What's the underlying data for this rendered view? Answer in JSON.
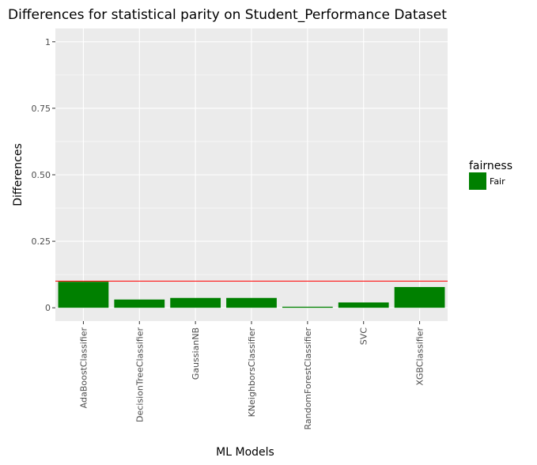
{
  "chart_data": {
    "type": "bar",
    "title": "Differences for statistical parity on Student_Performance Dataset",
    "xlabel": "ML Models",
    "ylabel": "Differences",
    "categories": [
      "AdaBoostClassifier",
      "DecisionTreeClassifier",
      "GaussianNB",
      "KNeighborsClassifier",
      "RandomForestClassifier",
      "SVC",
      "XGBClassifier"
    ],
    "values": [
      0.098,
      0.031,
      0.037,
      0.037,
      0.004,
      0.02,
      0.078
    ],
    "ylim": [
      -0.05,
      1.05
    ],
    "yticks": [
      0,
      0.25,
      0.5,
      0.75,
      1
    ],
    "ytick_labels": [
      "0",
      "0.25",
      "0.50",
      "0.75",
      "1"
    ],
    "threshold": 0.1,
    "threshold_color": "#ff0000",
    "bar_color": "#008000",
    "panel_color": "#ebebeb",
    "grid": true,
    "legend": {
      "title": "fairness",
      "position": "right",
      "items": [
        {
          "label": "Fair",
          "color": "#008000"
        }
      ]
    }
  }
}
